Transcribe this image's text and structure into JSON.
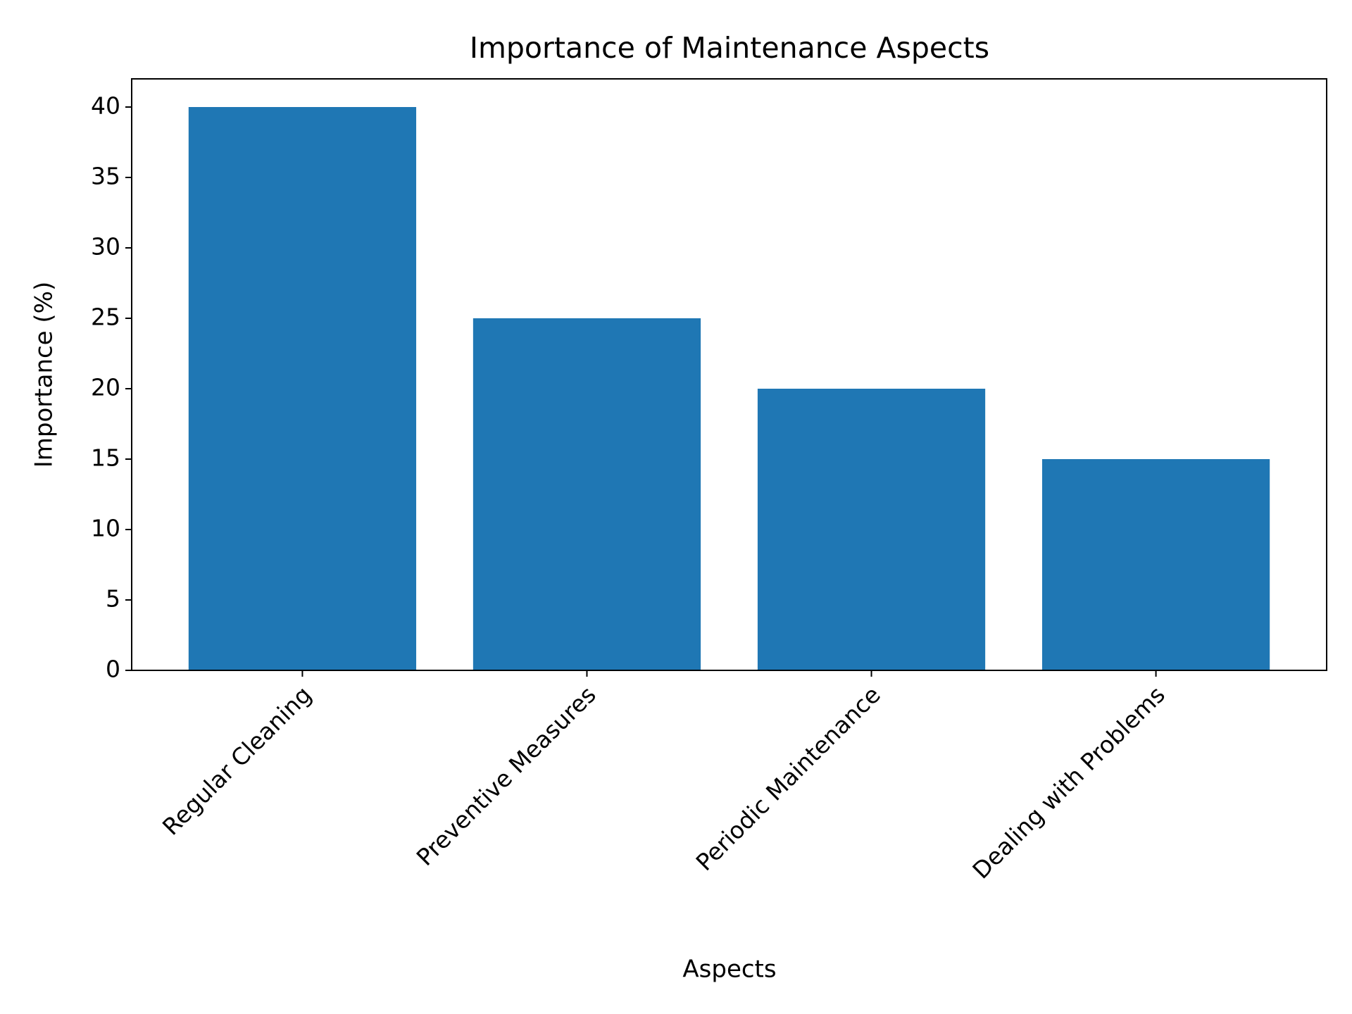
{
  "chart_data": {
    "type": "bar",
    "title": "Importance of Maintenance Aspects",
    "x_label": "Aspects",
    "y_label": "Importance (%)",
    "categories": [
      "Regular Cleaning",
      "Preventive Measures",
      "Periodic Maintenance",
      "Dealing with Problems"
    ],
    "values": [
      40,
      25,
      20,
      15
    ],
    "color": "#1f77b4",
    "ylim": [
      0,
      42
    ],
    "yticks": [
      0,
      5,
      10,
      15,
      20,
      25,
      30,
      35,
      40
    ],
    "grid": false
  }
}
